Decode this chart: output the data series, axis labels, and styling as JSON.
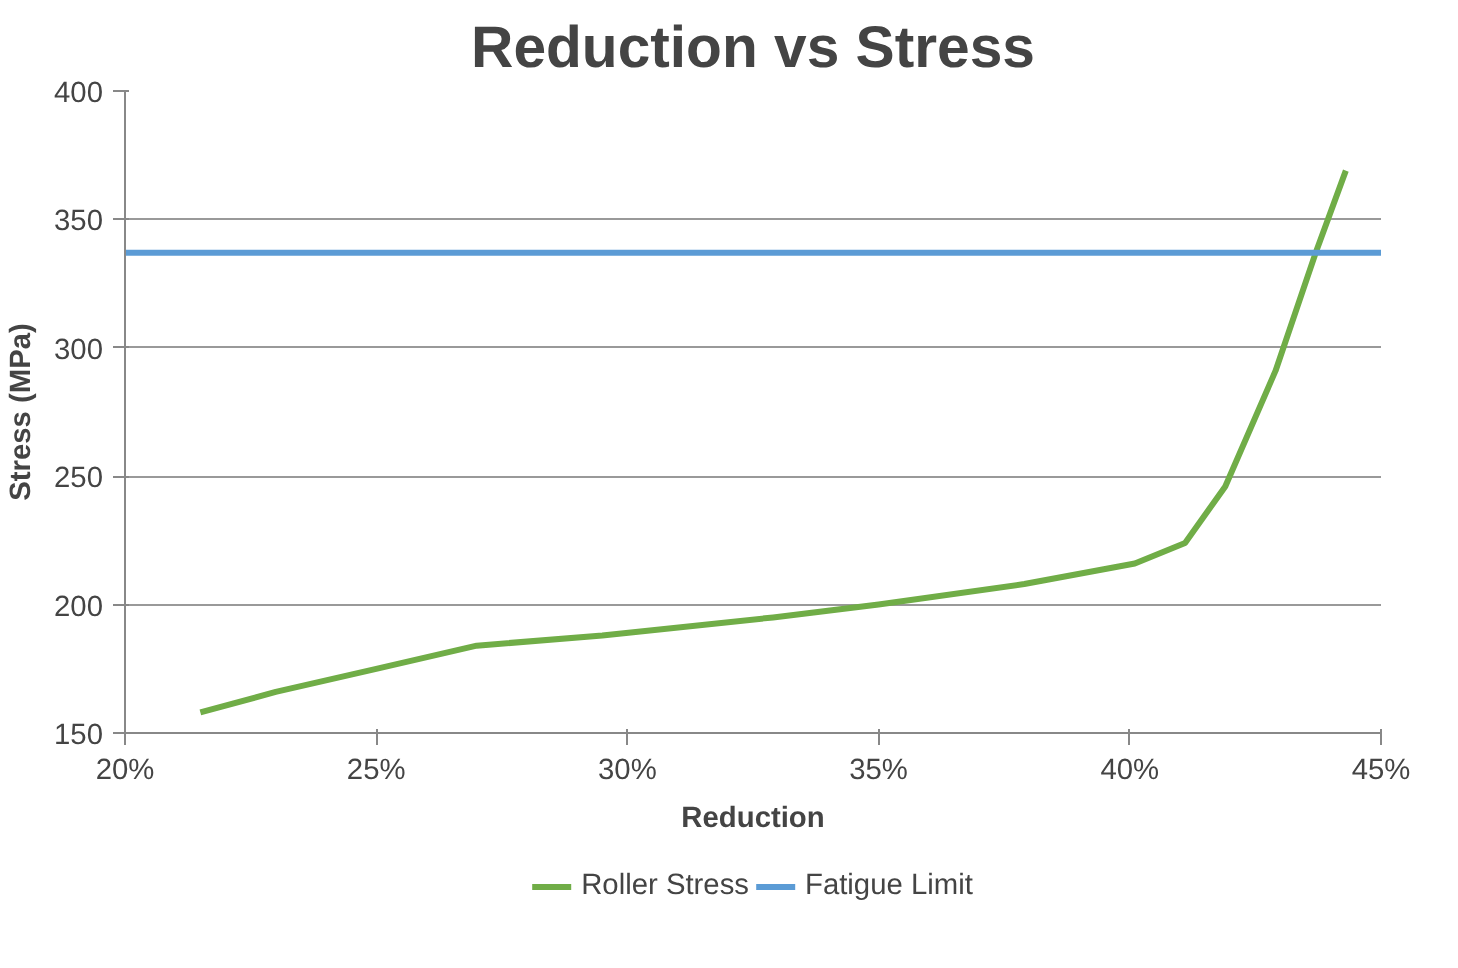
{
  "chart_data": {
    "type": "line",
    "title": "Reduction vs Stress",
    "xlabel": "Reduction",
    "ylabel": "Stress (MPa)",
    "xlim": [
      20,
      45
    ],
    "xticks": [
      {
        "value": 20,
        "label": "20%"
      },
      {
        "value": 25,
        "label": "25%"
      },
      {
        "value": 30,
        "label": "30%"
      },
      {
        "value": 35,
        "label": "35%"
      },
      {
        "value": 40,
        "label": "40%"
      },
      {
        "value": 45,
        "label": "45%"
      }
    ],
    "ylim": [
      150,
      400
    ],
    "yticks": [
      150,
      200,
      250,
      300,
      350,
      400
    ],
    "grid": "y",
    "legend": "bottom",
    "series": [
      {
        "name": "Roller Stress",
        "color": "#70ad47",
        "x": [
          21.5,
          23,
          25,
          27,
          29.5,
          32.9,
          35,
          37.9,
          40.1,
          41.1,
          41.9,
          42.9,
          43.7,
          44.3
        ],
        "values": [
          158,
          166,
          175,
          184,
          188,
          195,
          200,
          208,
          216,
          224,
          246,
          291,
          337,
          369
        ]
      },
      {
        "name": "Fatigue Limit",
        "color": "#5b9bd5",
        "x": [
          20,
          45
        ],
        "values": [
          337,
          337
        ]
      }
    ]
  }
}
